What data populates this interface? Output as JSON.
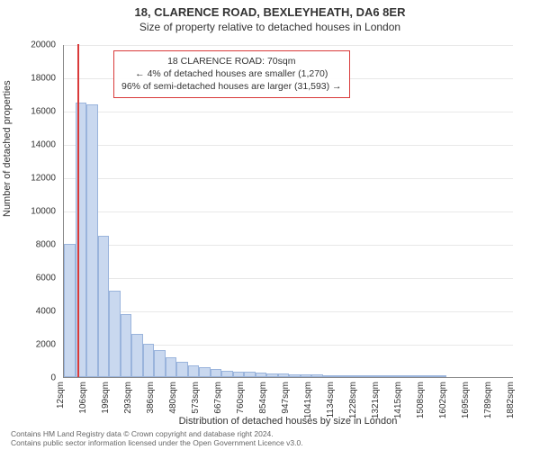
{
  "title_main": "18, CLARENCE ROAD, BEXLEYHEATH, DA6 8ER",
  "title_sub": "Size of property relative to detached houses in London",
  "y_axis_title": "Number of detached properties",
  "x_axis_title": "Distribution of detached houses by size in London",
  "annotation": {
    "line1": "18 CLARENCE ROAD: 70sqm",
    "line2": "← 4% of detached houses are smaller (1,270)",
    "line3": "96% of semi-detached houses are larger (31,593) →"
  },
  "footer_line1": "Contains HM Land Registry data © Crown copyright and database right 2024.",
  "footer_line2": "Contains public sector information licensed under the Open Government Licence v3.0.",
  "chart": {
    "type": "histogram",
    "background_color": "#ffffff",
    "grid_color": "#e8e8e8",
    "bar_fill": "#c9d8ef",
    "bar_border": "#9ab4dc",
    "marker_color": "#d93a3a",
    "ylim": [
      0,
      20000
    ],
    "ytick_step": 2000,
    "y_ticks": [
      0,
      2000,
      4000,
      6000,
      8000,
      10000,
      12000,
      14000,
      16000,
      18000,
      20000
    ],
    "x_ticks": [
      "12sqm",
      "106sqm",
      "199sqm",
      "293sqm",
      "386sqm",
      "480sqm",
      "573sqm",
      "667sqm",
      "760sqm",
      "854sqm",
      "947sqm",
      "1041sqm",
      "1134sqm",
      "1228sqm",
      "1321sqm",
      "1415sqm",
      "1508sqm",
      "1602sqm",
      "1695sqm",
      "1789sqm",
      "1882sqm"
    ],
    "x_range": [
      12,
      1920
    ],
    "bin_count": 40,
    "marker_x": 70,
    "values": [
      8000,
      16500,
      16400,
      8500,
      5200,
      3800,
      2600,
      2000,
      1600,
      1200,
      900,
      700,
      600,
      500,
      400,
      350,
      300,
      250,
      220,
      200,
      180,
      160,
      140,
      120,
      100,
      90,
      80,
      70,
      60,
      50,
      45,
      40,
      35,
      30,
      25,
      20,
      18,
      15,
      12,
      10
    ],
    "title_fontsize": 13,
    "subtitle_fontsize": 12,
    "axis_label_fontsize": 11,
    "tick_fontsize": 10,
    "annotation_fontsize": 10.5,
    "footer_fontsize": 8.5
  }
}
